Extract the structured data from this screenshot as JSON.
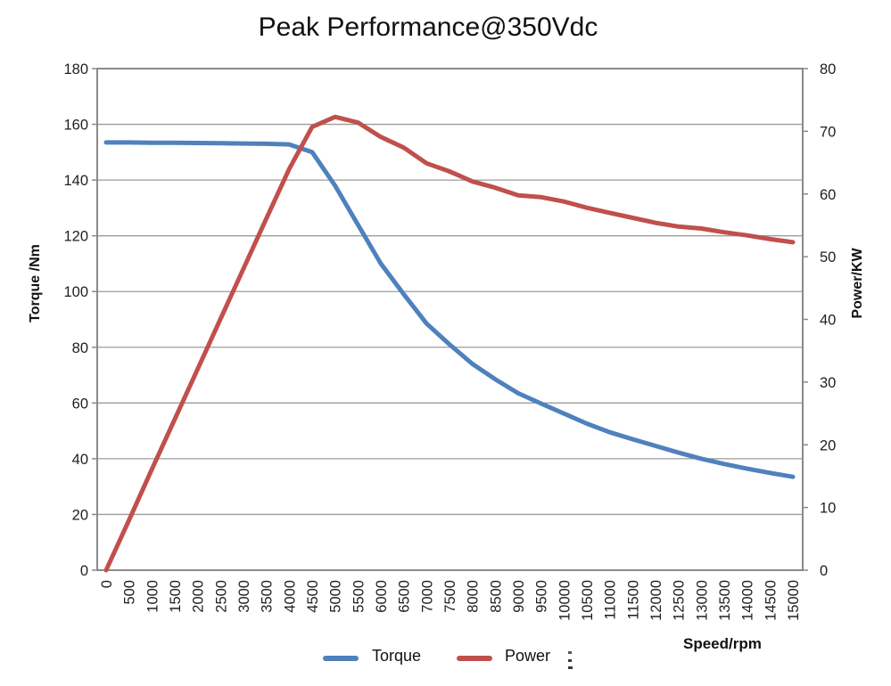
{
  "chart_data": {
    "type": "line",
    "title": "Peak Performance@350Vdc",
    "x_label": "Speed/rpm",
    "y_left": {
      "label": "Torque /Nm",
      "min": 0,
      "max": 180,
      "step": 20
    },
    "y_right": {
      "label": "Power/KW",
      "min": 0,
      "max": 80,
      "step": 10
    },
    "x": [
      0,
      500,
      1000,
      1500,
      2000,
      2500,
      3000,
      3500,
      4000,
      4500,
      5000,
      5500,
      6000,
      6500,
      7000,
      7500,
      8000,
      8500,
      9000,
      9500,
      10000,
      10500,
      11000,
      11500,
      12000,
      12500,
      13000,
      13500,
      14000,
      14500,
      15000
    ],
    "series": [
      {
        "name": "Torque",
        "axis": "left",
        "color": "#4f81bd",
        "values": [
          153.5,
          153.5,
          153.4,
          153.4,
          153.3,
          153.2,
          153.1,
          153.0,
          152.8,
          150.0,
          138.0,
          124.0,
          110.0,
          99.0,
          88.5,
          81.0,
          74.0,
          68.5,
          63.5,
          59.8,
          56.2,
          52.6,
          49.5,
          47.0,
          44.6,
          42.2,
          40.0,
          38.1,
          36.4,
          34.9,
          33.5
        ]
      },
      {
        "name": "Power",
        "axis": "right",
        "color": "#c0504d",
        "values": [
          0,
          8.0,
          16.1,
          24.1,
          32.1,
          40.1,
          48.1,
          56.1,
          64.0,
          70.7,
          72.3,
          71.4,
          69.1,
          67.4,
          64.9,
          63.6,
          62.0,
          61.0,
          59.8,
          59.5,
          58.8,
          57.8,
          57.0,
          56.2,
          55.4,
          54.8,
          54.5,
          53.9,
          53.4,
          52.8,
          52.3
        ]
      }
    ],
    "grid": "horizontal-only",
    "legend_position": "bottom-center",
    "style": {
      "grid_color": "#9c9c9c",
      "border_color": "#8a8a8a",
      "tick_text_color": "#1f1f1f",
      "background": "#ffffff"
    }
  }
}
